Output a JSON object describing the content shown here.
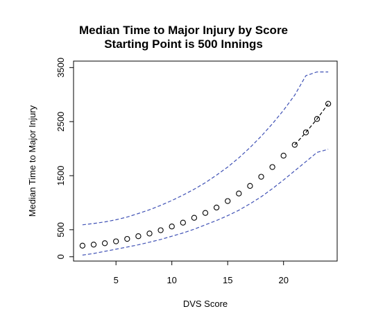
{
  "chart_data": {
    "type": "scatter",
    "title": "Median Time to Major Injury by Score",
    "subtitle": "Starting Point is 500 Innings",
    "xlabel": "DVS Score",
    "ylabel": "Median Time to Major Injury",
    "xlim": [
      1.2,
      24.8
    ],
    "ylim": [
      -80,
      3620
    ],
    "xticks": [
      5,
      10,
      15,
      20
    ],
    "yticks": [
      0,
      500,
      1500,
      2500,
      3500
    ],
    "grid": false,
    "legend": "none",
    "series": [
      {
        "style": "points-open-circles",
        "color": "#000000",
        "x": [
          2,
          3,
          4,
          5,
          6,
          7,
          8,
          9,
          10,
          11,
          12,
          13,
          14,
          15,
          16,
          17,
          18,
          19,
          20,
          21,
          22,
          23,
          24
        ],
        "y": [
          205,
          225,
          250,
          285,
          330,
          380,
          430,
          490,
          560,
          630,
          720,
          810,
          910,
          1030,
          1170,
          1310,
          1480,
          1660,
          1870,
          2070,
          2300,
          2550,
          2830
        ]
      },
      {
        "style": "dashed-line",
        "color": "#3f51b5",
        "x": [
          2,
          3,
          4,
          5,
          6,
          7,
          8,
          9,
          10,
          11,
          12,
          13,
          14,
          15,
          16,
          17,
          18,
          19,
          20,
          21,
          22,
          23,
          24
        ],
        "y": [
          590,
          615,
          645,
          685,
          735,
          800,
          870,
          950,
          1040,
          1140,
          1250,
          1370,
          1510,
          1660,
          1830,
          2020,
          2230,
          2460,
          2710,
          2990,
          3350,
          3420,
          3420
        ]
      },
      {
        "style": "dashed-line",
        "color": "#000000",
        "x": [
          21,
          22,
          23,
          24
        ],
        "y": [
          2070,
          2300,
          2550,
          2830
        ]
      },
      {
        "style": "dashed-line",
        "color": "#3f51b5",
        "x": [
          2,
          3,
          4,
          5,
          6,
          7,
          8,
          9,
          10,
          11,
          12,
          13,
          14,
          15,
          16,
          17,
          18,
          19,
          20,
          21,
          22,
          23,
          24
        ],
        "y": [
          30,
          60,
          100,
          140,
          180,
          220,
          270,
          320,
          380,
          440,
          510,
          590,
          670,
          760,
          860,
          980,
          1110,
          1260,
          1420,
          1590,
          1760,
          1930,
          1990
        ]
      }
    ]
  }
}
